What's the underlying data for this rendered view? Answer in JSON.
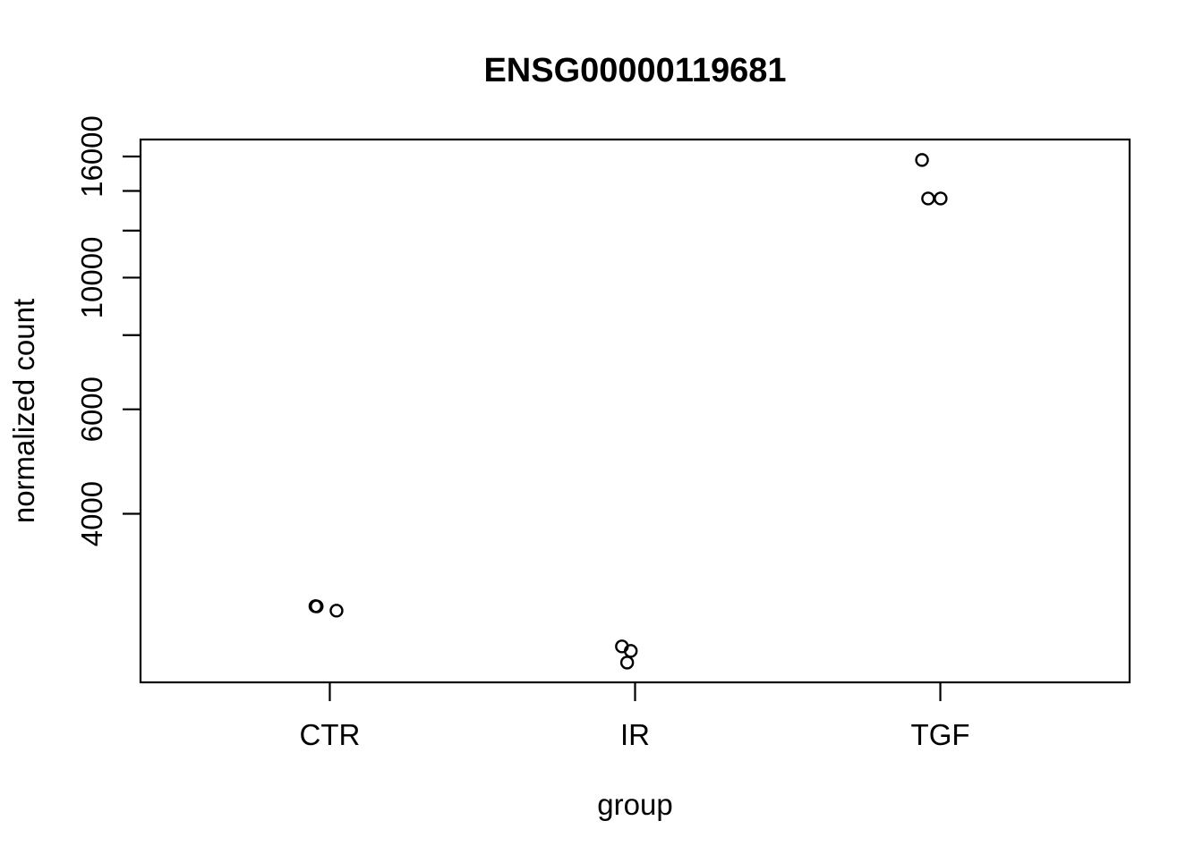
{
  "title": "ENSG00000119681",
  "chart_data": {
    "type": "scatter",
    "title": "ENSG00000119681",
    "xlabel": "group",
    "ylabel": "normalized count",
    "y_scale": "log10",
    "grid": false,
    "legend": "none",
    "marker": "open-circle",
    "colors": {
      "foreground": "#000000",
      "background": "#ffffff"
    },
    "categories": [
      "CTR",
      "IR",
      "TGF"
    ],
    "category_positions": [
      1,
      2,
      3
    ],
    "xlim": [
      0.38,
      3.62
    ],
    "ylim": [
      2080,
      17090
    ],
    "y_ticks": [
      {
        "value": 4000,
        "label": "4000"
      },
      {
        "value": 6000,
        "label": "6000"
      },
      {
        "value": 8000,
        "label": ""
      },
      {
        "value": 10000,
        "label": "10000"
      },
      {
        "value": 12000,
        "label": ""
      },
      {
        "value": 14000,
        "label": ""
      },
      {
        "value": 16000,
        "label": ""
      }
    ],
    "y_top_tick": {
      "value": 16000,
      "label": "16000"
    },
    "series": [
      {
        "name": "CTR",
        "points": [
          {
            "x": 0.953,
            "y": 2795
          },
          {
            "x": 0.957,
            "y": 2793
          },
          {
            "x": 1.022,
            "y": 2747
          }
        ]
      },
      {
        "name": "IR",
        "points": [
          {
            "x": 1.957,
            "y": 2391
          },
          {
            "x": 1.986,
            "y": 2350
          },
          {
            "x": 1.974,
            "y": 2246
          }
        ]
      },
      {
        "name": "TGF",
        "points": [
          {
            "x": 2.94,
            "y": 15786
          },
          {
            "x": 2.96,
            "y": 13594
          },
          {
            "x": 3.001,
            "y": 13594
          }
        ]
      }
    ]
  }
}
